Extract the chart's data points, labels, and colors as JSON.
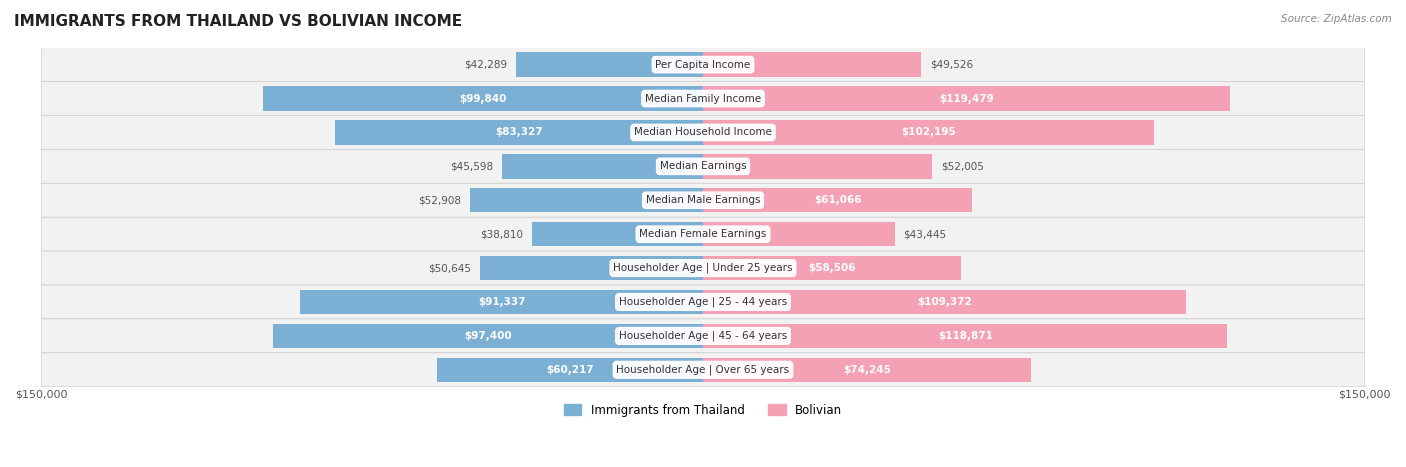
{
  "title": "IMMIGRANTS FROM THAILAND VS BOLIVIAN INCOME",
  "source": "Source: ZipAtlas.com",
  "categories": [
    "Per Capita Income",
    "Median Family Income",
    "Median Household Income",
    "Median Earnings",
    "Median Male Earnings",
    "Median Female Earnings",
    "Householder Age | Under 25 years",
    "Householder Age | 25 - 44 years",
    "Householder Age | 45 - 64 years",
    "Householder Age | Over 65 years"
  ],
  "thailand_values": [
    42289,
    99840,
    83327,
    45598,
    52908,
    38810,
    50645,
    91337,
    97400,
    60217
  ],
  "bolivian_values": [
    49526,
    119479,
    102195,
    52005,
    61066,
    43445,
    58506,
    109372,
    118871,
    74245
  ],
  "thailand_color": "#7bafd4",
  "thailand_color_dark": "#5b8db8",
  "bolivian_color": "#f4a0b5",
  "bolivian_color_dark": "#e8728f",
  "thailand_label_color_dark": [
    "#5b8db8",
    "#ffffff",
    "#ffffff",
    "#5b8db8",
    "#5b8db8",
    "#5b8db8",
    "#5b8db8",
    "#ffffff",
    "#ffffff",
    "#5b8db8"
  ],
  "bolivian_label_color_dark": [
    "#5b8db8",
    "#ffffff",
    "#ffffff",
    "#5b8db8",
    "#5b8db8",
    "#5b8db8",
    "#5b8db8",
    "#ffffff",
    "#ffffff",
    "#5b8db8"
  ],
  "x_max": 150000,
  "background_color": "#f5f5f5",
  "row_bg_color": "#efefef",
  "row_bg_color2": "#e8e8e8",
  "legend_thailand_color": "#7bafd4",
  "legend_bolivian_color": "#f4a0b5"
}
